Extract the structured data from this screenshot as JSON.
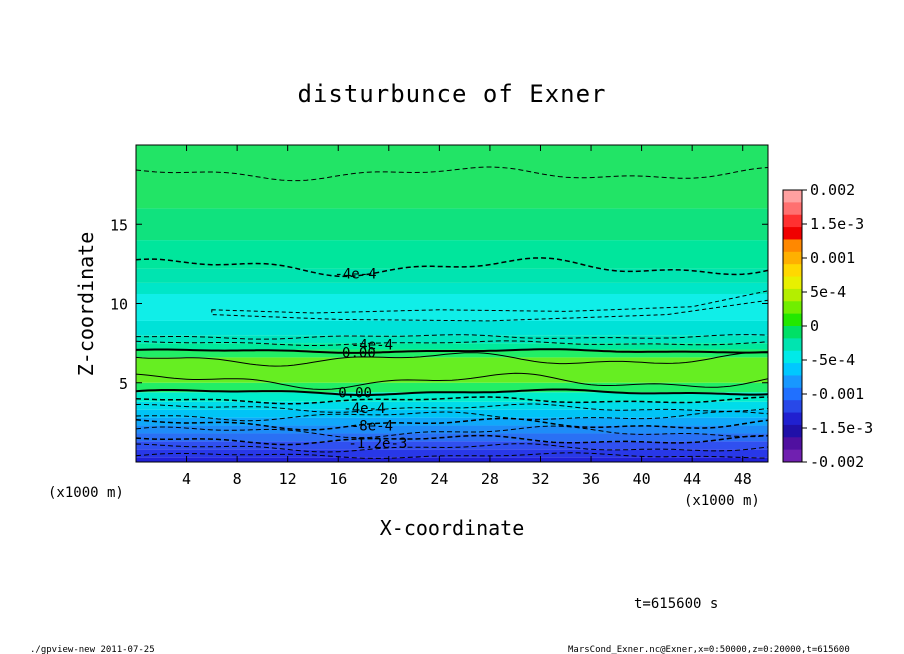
{
  "chart_data": {
    "type": "heatmap",
    "title": "disturbunce of Exner",
    "xlabel": "X-coordinate",
    "ylabel": "Z-coordinate",
    "x_unit_left": "(x1000 m)",
    "x_unit_right": "(x1000 m)",
    "xlim": [
      0,
      50
    ],
    "ylim": [
      0,
      20
    ],
    "xticks": [
      "4",
      "8",
      "12",
      "16",
      "20",
      "24",
      "28",
      "32",
      "36",
      "40",
      "44",
      "48"
    ],
    "yticks": [
      "5",
      "10",
      "15"
    ],
    "contour_labels": [
      "-4e-4",
      "-4e-4",
      "0.00",
      "0.00",
      "-4e-4",
      "-8e-4",
      "-1.2e-3"
    ],
    "colorbar": {
      "labels": [
        "0.002",
        "1.5e-3",
        "0.001",
        "5e-4",
        "0",
        "-5e-4",
        "-0.001",
        "-1.5e-3",
        "-0.002"
      ],
      "range": [
        -0.002,
        0.002
      ]
    },
    "grid": false
  },
  "time_label": "t=615600 s",
  "footer_left": "./gpview-new   2011-07-25",
  "footer_right": "MarsCond_Exner.nc@Exner,x=0:50000,z=0:20000,t=615600"
}
